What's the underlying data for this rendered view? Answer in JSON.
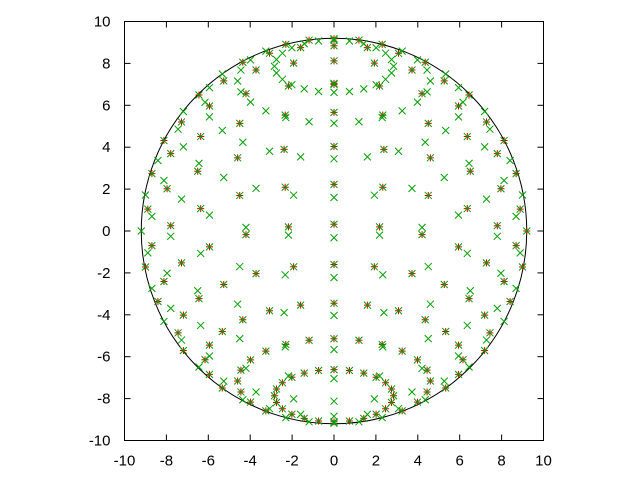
{
  "chart_data": {
    "type": "scatter",
    "title": "",
    "xlabel": "",
    "ylabel": "",
    "xlim": [
      -10,
      10
    ],
    "ylim": [
      -10,
      10
    ],
    "xticks": [
      -10,
      -8,
      -6,
      -4,
      -2,
      0,
      2,
      4,
      6,
      8,
      10
    ],
    "yticks": [
      -10,
      -8,
      -6,
      -4,
      -2,
      0,
      2,
      4,
      6,
      8,
      10
    ],
    "tick_labels_x": [
      "-10",
      "-8",
      "-6",
      "-4",
      "-2",
      "0",
      "2",
      "4",
      "6",
      "8",
      "10"
    ],
    "tick_labels_y": [
      "-10",
      "-8",
      "-6",
      "-4",
      "-2",
      "0",
      "2",
      "4",
      "6",
      "8",
      "10"
    ],
    "grid": false,
    "legend": "none",
    "outline_circle": {
      "center": [
        0,
        0
      ],
      "radius": 9.2,
      "color": "#000000"
    },
    "series": [
      {
        "marker": "plus",
        "color": "#dd0000",
        "radius": 9.2,
        "view_tilt_deg": 26,
        "latitude_rings_deg": [
          72,
          60,
          48,
          36,
          24,
          12,
          0,
          -12,
          -24,
          -36,
          -48,
          -60,
          -72
        ],
        "meridians_deg": [
          0,
          15,
          30,
          45,
          60,
          75,
          90,
          105,
          120,
          135,
          150,
          165,
          180,
          195,
          210,
          225,
          240,
          255,
          270,
          285,
          300,
          315,
          330,
          345
        ],
        "visible_hemisphere_only": true,
        "pole_points": [
          [
            0,
            7.0
          ]
        ]
      },
      {
        "marker": "cross",
        "color": "#00a000",
        "radius": 9.2,
        "view_tilt_deg": 26,
        "latitude_rings_deg": [
          72,
          60,
          48,
          36,
          24,
          12,
          0,
          -12,
          -24,
          -36,
          -48,
          -60,
          -72
        ],
        "meridians_deg": [
          0,
          15,
          30,
          45,
          60,
          75,
          90,
          105,
          120,
          135,
          150,
          165,
          180,
          195,
          210,
          225,
          240,
          255,
          270,
          285,
          300,
          315,
          330,
          345
        ],
        "visible_hemisphere_only": false,
        "pole_points": [
          [
            0,
            7.0
          ]
        ]
      }
    ]
  }
}
